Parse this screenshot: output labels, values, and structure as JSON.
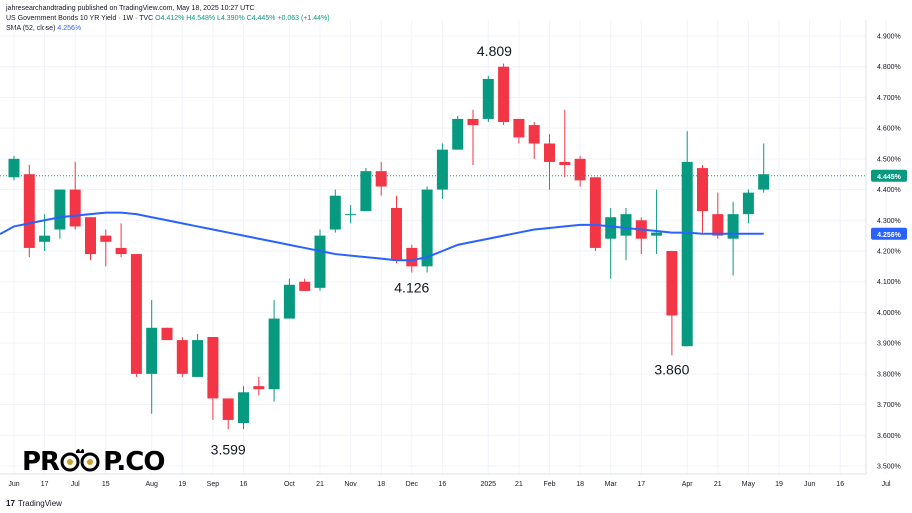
{
  "header": {
    "publisher": "jahresearchandtrading published on TradingView.com, May 18, 2025 10:27 UTC",
    "symbol": "US Government Bonds 10 YR Yield · 1W · TVC",
    "ohlc": {
      "o": "O4.412%",
      "h": "H4.548%",
      "l": "L4.390%",
      "c": "C4.445%",
      "chg": "+0.063 (+1.44%)"
    },
    "sma_label": "SMA (52, close)",
    "sma_value": "4.256%"
  },
  "footer": {
    "tradingview_glyph": "17",
    "tradingview_text": "TradingView"
  },
  "logo": {
    "part1": "PR",
    "part2": "P.CO",
    "colors": {
      "text": "#000000",
      "gold": "#c9a227"
    }
  },
  "colors": {
    "up": "#089981",
    "down": "#f23645",
    "sma": "#2962ff",
    "grid": "#f0f3fa",
    "axis_text": "#131722",
    "last_price_line": "#089981"
  },
  "chart_data": {
    "type": "candlestick",
    "title": "US Government Bonds 10 YR Yield · 1W · TVC",
    "ylabel": "",
    "xlabel": "",
    "ylim": [
      3.5,
      4.92
    ],
    "y_ticks": [
      "3.500%",
      "3.600%",
      "3.700%",
      "3.800%",
      "3.900%",
      "4.000%",
      "4.100%",
      "4.200%",
      "4.300%",
      "4.400%",
      "4.500%",
      "4.600%",
      "4.700%",
      "4.800%",
      "4.900%"
    ],
    "x_ticks": [
      {
        "label": "Jun",
        "index": 0
      },
      {
        "label": "17",
        "index": 2
      },
      {
        "label": "Jul",
        "index": 4
      },
      {
        "label": "15",
        "index": 6
      },
      {
        "label": "Aug",
        "index": 9
      },
      {
        "label": "19",
        "index": 11
      },
      {
        "label": "Sep",
        "index": 13
      },
      {
        "label": "16",
        "index": 15
      },
      {
        "label": "Oct",
        "index": 18
      },
      {
        "label": "21",
        "index": 20
      },
      {
        "label": "Nov",
        "index": 22
      },
      {
        "label": "18",
        "index": 24
      },
      {
        "label": "Dec",
        "index": 26
      },
      {
        "label": "16",
        "index": 28
      },
      {
        "label": "2025",
        "index": 31
      },
      {
        "label": "21",
        "index": 33
      },
      {
        "label": "Feb",
        "index": 35
      },
      {
        "label": "18",
        "index": 37
      },
      {
        "label": "Mar",
        "index": 39
      },
      {
        "label": "17",
        "index": 41
      },
      {
        "label": "Apr",
        "index": 44
      },
      {
        "label": "21",
        "index": 46
      },
      {
        "label": "May",
        "index": 48
      },
      {
        "label": "19",
        "index": 50
      },
      {
        "label": "Jun",
        "index": 52
      },
      {
        "label": "16",
        "index": 54
      },
      {
        "label": "Jul",
        "index": 57
      }
    ],
    "candles": [
      {
        "o": 4.44,
        "h": 4.51,
        "l": 4.43,
        "c": 4.5
      },
      {
        "o": 4.45,
        "h": 4.48,
        "l": 4.18,
        "c": 4.21
      },
      {
        "o": 4.23,
        "h": 4.32,
        "l": 4.2,
        "c": 4.25
      },
      {
        "o": 4.27,
        "h": 4.4,
        "l": 4.24,
        "c": 4.4
      },
      {
        "o": 4.4,
        "h": 4.49,
        "l": 4.27,
        "c": 4.28
      },
      {
        "o": 4.31,
        "h": 4.31,
        "l": 4.17,
        "c": 4.19
      },
      {
        "o": 4.25,
        "h": 4.27,
        "l": 4.15,
        "c": 4.23
      },
      {
        "o": 4.21,
        "h": 4.29,
        "l": 4.18,
        "c": 4.19
      },
      {
        "o": 4.19,
        "h": 4.19,
        "l": 3.79,
        "c": 3.8
      },
      {
        "o": 3.8,
        "h": 4.04,
        "l": 3.67,
        "c": 3.95
      },
      {
        "o": 3.95,
        "h": 3.95,
        "l": 3.91,
        "c": 3.91
      },
      {
        "o": 3.91,
        "h": 3.92,
        "l": 3.79,
        "c": 3.8
      },
      {
        "o": 3.79,
        "h": 3.93,
        "l": 3.79,
        "c": 3.91
      },
      {
        "o": 3.92,
        "h": 3.92,
        "l": 3.65,
        "c": 3.72
      },
      {
        "o": 3.72,
        "h": 3.72,
        "l": 3.62,
        "c": 3.65
      },
      {
        "o": 3.64,
        "h": 3.76,
        "l": 3.62,
        "c": 3.74
      },
      {
        "o": 3.76,
        "h": 3.79,
        "l": 3.73,
        "c": 3.75
      },
      {
        "o": 3.75,
        "h": 4.04,
        "l": 3.71,
        "c": 3.98
      },
      {
        "o": 3.98,
        "h": 4.11,
        "l": 3.98,
        "c": 4.09
      },
      {
        "o": 4.1,
        "h": 4.11,
        "l": 4.07,
        "c": 4.07
      },
      {
        "o": 4.08,
        "h": 4.27,
        "l": 4.07,
        "c": 4.25
      },
      {
        "o": 4.27,
        "h": 4.4,
        "l": 4.26,
        "c": 4.38
      },
      {
        "o": 4.32,
        "h": 4.35,
        "l": 4.29,
        "c": 4.32
      },
      {
        "o": 4.33,
        "h": 4.47,
        "l": 4.33,
        "c": 4.46
      },
      {
        "o": 4.46,
        "h": 4.49,
        "l": 4.38,
        "c": 4.41
      },
      {
        "o": 4.34,
        "h": 4.38,
        "l": 4.16,
        "c": 4.17
      },
      {
        "o": 4.21,
        "h": 4.22,
        "l": 4.13,
        "c": 4.15
      },
      {
        "o": 4.15,
        "h": 4.41,
        "l": 4.13,
        "c": 4.4
      },
      {
        "o": 4.4,
        "h": 4.55,
        "l": 4.37,
        "c": 4.53
      },
      {
        "o": 4.53,
        "h": 4.64,
        "l": 4.53,
        "c": 4.63
      },
      {
        "o": 4.63,
        "h": 4.66,
        "l": 4.48,
        "c": 4.61
      },
      {
        "o": 4.63,
        "h": 4.77,
        "l": 4.62,
        "c": 4.76
      },
      {
        "o": 4.8,
        "h": 4.81,
        "l": 4.61,
        "c": 4.62
      },
      {
        "o": 4.63,
        "h": 4.63,
        "l": 4.55,
        "c": 4.57
      },
      {
        "o": 4.61,
        "h": 4.62,
        "l": 4.5,
        "c": 4.55
      },
      {
        "o": 4.55,
        "h": 4.58,
        "l": 4.4,
        "c": 4.49
      },
      {
        "o": 4.49,
        "h": 4.66,
        "l": 4.44,
        "c": 4.48
      },
      {
        "o": 4.5,
        "h": 4.51,
        "l": 4.41,
        "c": 4.43
      },
      {
        "o": 4.44,
        "h": 4.44,
        "l": 4.2,
        "c": 4.21
      },
      {
        "o": 4.24,
        "h": 4.34,
        "l": 4.11,
        "c": 4.31
      },
      {
        "o": 4.25,
        "h": 4.34,
        "l": 4.17,
        "c": 4.32
      },
      {
        "o": 4.3,
        "h": 4.31,
        "l": 4.19,
        "c": 4.24
      },
      {
        "o": 4.25,
        "h": 4.4,
        "l": 4.19,
        "c": 4.26
      },
      {
        "o": 4.2,
        "h": 4.2,
        "l": 3.86,
        "c": 3.99
      },
      {
        "o": 3.89,
        "h": 4.59,
        "l": 3.89,
        "c": 4.49
      },
      {
        "o": 4.47,
        "h": 4.48,
        "l": 4.26,
        "c": 4.33
      },
      {
        "o": 4.32,
        "h": 4.39,
        "l": 4.24,
        "c": 4.25
      },
      {
        "o": 4.24,
        "h": 4.36,
        "l": 4.12,
        "c": 4.32
      },
      {
        "o": 4.32,
        "h": 4.4,
        "l": 4.29,
        "c": 4.39
      },
      {
        "o": 4.4,
        "h": 4.55,
        "l": 4.39,
        "c": 4.45
      }
    ],
    "sma_series": {
      "name": "SMA (52, close)",
      "values": [
        4.28,
        4.29,
        4.3,
        4.31,
        4.315,
        4.32,
        4.325,
        4.325,
        4.32,
        4.31,
        4.3,
        4.29,
        4.28,
        4.27,
        4.26,
        4.25,
        4.24,
        4.23,
        4.22,
        4.21,
        4.2,
        4.19,
        4.185,
        4.18,
        4.175,
        4.17,
        4.17,
        4.18,
        4.2,
        4.22,
        4.23,
        4.24,
        4.25,
        4.26,
        4.27,
        4.275,
        4.28,
        4.285,
        4.285,
        4.28,
        4.275,
        4.27,
        4.265,
        4.26,
        4.26,
        4.256,
        4.256,
        4.256,
        4.256,
        4.256
      ]
    },
    "annotations": [
      {
        "text": "4.809",
        "index": 31.4,
        "value": 4.809,
        "pos": "above"
      },
      {
        "text": "4.126",
        "index": 26,
        "value": 4.126,
        "pos": "below"
      },
      {
        "text": "3.599",
        "index": 14,
        "value": 3.599,
        "pos": "below"
      },
      {
        "text": "3.860",
        "index": 43,
        "value": 3.86,
        "pos": "below"
      }
    ],
    "price_labels": [
      {
        "text": "4.445%",
        "value": 4.445,
        "color": "#089981"
      },
      {
        "text": "4.256%",
        "value": 4.256,
        "color": "#2962ff"
      }
    ],
    "grid": true
  }
}
